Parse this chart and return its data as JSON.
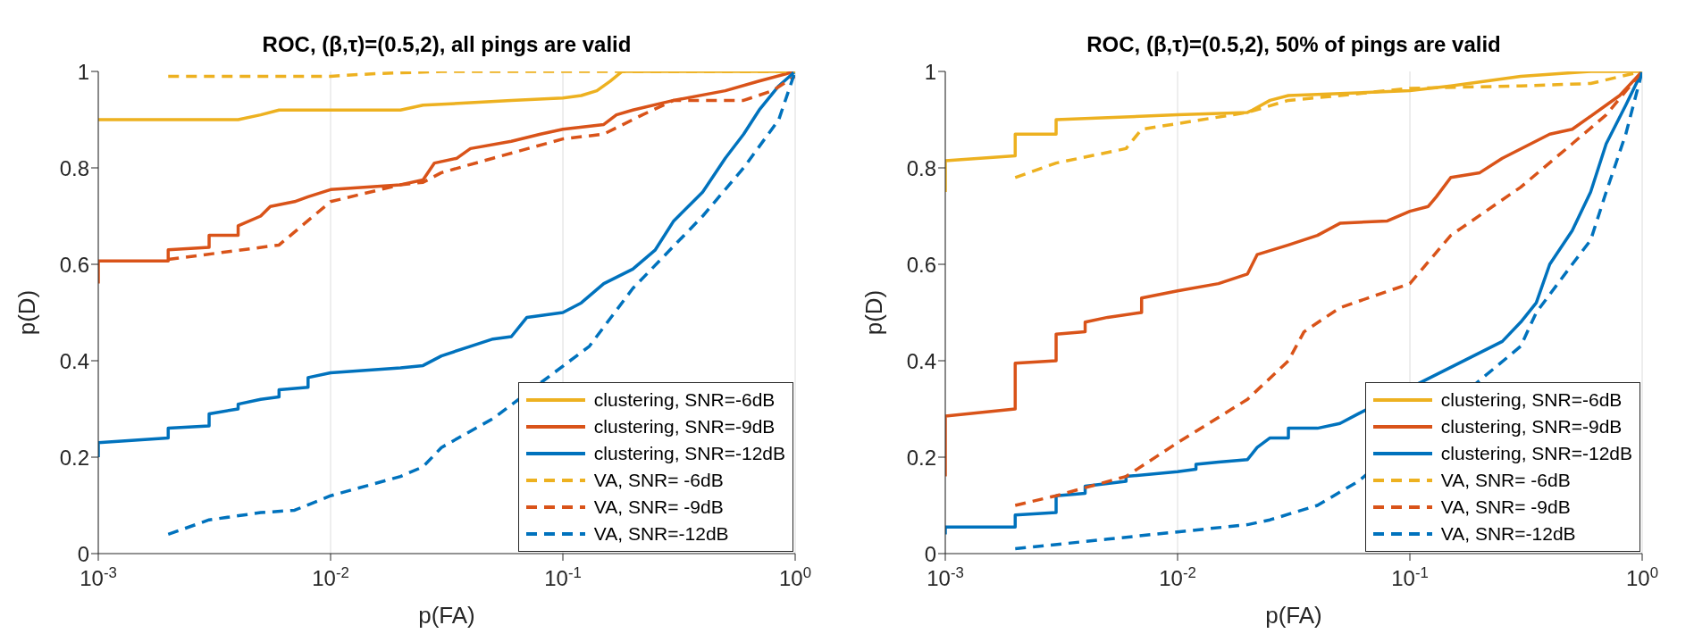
{
  "chart_data": [
    {
      "type": "line",
      "title": "ROC, (β,τ)=(0.5,2), all pings are valid",
      "xlabel": "p(FA)",
      "ylabel": "p(D)",
      "log": "x",
      "xlim": [
        0.001,
        1
      ],
      "xticks": [
        {
          "value": 0.001,
          "label": "10$^{-3}$"
        },
        {
          "value": 0.01,
          "label": "10$^{-2}$"
        },
        {
          "value": 0.1,
          "label": "10$^{-1}$"
        },
        {
          "value": 1,
          "label": "10$^{0}$"
        }
      ],
      "ylim": [
        0,
        1
      ],
      "yticks": [
        0,
        0.2,
        0.4,
        0.6,
        0.8,
        1
      ],
      "grid": true,
      "legend": "bottom right",
      "series": [
        {
          "name": "clustering, SNR=-6dB",
          "color": "#edb120",
          "line_style": "solid",
          "x": [
            0.001,
            0.004,
            0.005,
            0.006,
            0.02,
            0.025,
            0.04,
            0.06,
            0.1,
            0.12,
            0.14,
            0.16,
            0.18,
            1
          ],
          "values": [
            0.9,
            0.9,
            0.91,
            0.92,
            0.92,
            0.93,
            0.935,
            0.94,
            0.945,
            0.95,
            0.96,
            0.98,
            1,
            1
          ]
        },
        {
          "name": "clustering, SNR=-9dB",
          "color": "#d95319",
          "line_style": "solid",
          "x": [
            0.001,
            0.001,
            0.002,
            0.002,
            0.003,
            0.003,
            0.004,
            0.004,
            0.005,
            0.0055,
            0.007,
            0.008,
            0.01,
            0.02,
            0.025,
            0.028,
            0.035,
            0.04,
            0.06,
            0.08,
            0.1,
            0.15,
            0.17,
            0.2,
            0.3,
            0.5,
            0.7,
            1
          ],
          "values": [
            0.56,
            0.607,
            0.607,
            0.63,
            0.635,
            0.66,
            0.66,
            0.68,
            0.7,
            0.72,
            0.73,
            0.74,
            0.755,
            0.765,
            0.775,
            0.81,
            0.82,
            0.84,
            0.855,
            0.87,
            0.88,
            0.89,
            0.91,
            0.92,
            0.94,
            0.96,
            0.98,
            1
          ]
        },
        {
          "name": "clustering, SNR=-12dB",
          "color": "#0072bd",
          "line_style": "solid",
          "x": [
            0.001,
            0.001,
            0.002,
            0.002,
            0.003,
            0.003,
            0.004,
            0.004,
            0.005,
            0.006,
            0.006,
            0.008,
            0.008,
            0.01,
            0.02,
            0.025,
            0.03,
            0.04,
            0.05,
            0.06,
            0.07,
            0.1,
            0.12,
            0.15,
            0.2,
            0.25,
            0.3,
            0.4,
            0.5,
            0.6,
            0.7,
            0.85,
            1
          ],
          "values": [
            0.2,
            0.23,
            0.24,
            0.26,
            0.265,
            0.29,
            0.3,
            0.31,
            0.32,
            0.325,
            0.34,
            0.345,
            0.365,
            0.375,
            0.385,
            0.39,
            0.41,
            0.43,
            0.445,
            0.45,
            0.49,
            0.5,
            0.52,
            0.56,
            0.59,
            0.63,
            0.69,
            0.75,
            0.82,
            0.87,
            0.92,
            0.97,
            1
          ]
        },
        {
          "name": "VA, SNR= -6dB",
          "color": "#edb120",
          "line_style": "dashed",
          "x": [
            0.002,
            0.01,
            0.015,
            0.03,
            1
          ],
          "values": [
            0.99,
            0.99,
            0.995,
            1,
            1
          ]
        },
        {
          "name": "VA, SNR= -9dB",
          "color": "#d95319",
          "line_style": "dashed",
          "x": [
            0.002,
            0.006,
            0.01,
            0.02,
            0.025,
            0.03,
            0.05,
            0.1,
            0.15,
            0.22,
            0.3,
            0.6,
            0.8,
            1
          ],
          "values": [
            0.61,
            0.64,
            0.73,
            0.765,
            0.77,
            0.79,
            0.82,
            0.86,
            0.87,
            0.91,
            0.94,
            0.94,
            0.96,
            0.99
          ]
        },
        {
          "name": "VA, SNR=-12dB",
          "color": "#0072bd",
          "line_style": "dashed",
          "x": [
            0.002,
            0.003,
            0.005,
            0.007,
            0.01,
            0.02,
            0.025,
            0.03,
            0.05,
            0.13,
            0.2,
            0.4,
            0.6,
            0.85,
            1
          ],
          "values": [
            0.04,
            0.07,
            0.085,
            0.09,
            0.12,
            0.16,
            0.18,
            0.22,
            0.28,
            0.43,
            0.55,
            0.7,
            0.8,
            0.9,
            1
          ]
        }
      ]
    },
    {
      "type": "line",
      "title": "ROC, (β,τ)=(0.5,2), 50% of pings are valid",
      "xlabel": "p(FA)",
      "ylabel": "p(D)",
      "log": "x",
      "xlim": [
        0.001,
        1
      ],
      "xticks": [
        {
          "value": 0.001,
          "label": "10$^{-3}$"
        },
        {
          "value": 0.01,
          "label": "10$^{-2}$"
        },
        {
          "value": 0.1,
          "label": "10$^{-1}$"
        },
        {
          "value": 1,
          "label": "10$^{0}$"
        }
      ],
      "ylim": [
        0,
        1
      ],
      "yticks": [
        0,
        0.2,
        0.4,
        0.6,
        0.8,
        1
      ],
      "grid": true,
      "legend": "bottom right",
      "series": [
        {
          "name": "clustering, SNR=-6dB",
          "color": "#edb120",
          "line_style": "solid",
          "x": [
            0.001,
            0.001,
            0.002,
            0.002,
            0.003,
            0.003,
            0.01,
            0.02,
            0.021,
            0.025,
            0.03,
            0.1,
            0.15,
            0.3,
            0.6,
            1
          ],
          "values": [
            0.75,
            0.815,
            0.825,
            0.87,
            0.87,
            0.9,
            0.91,
            0.915,
            0.92,
            0.94,
            0.95,
            0.96,
            0.97,
            0.99,
            1,
            1
          ]
        },
        {
          "name": "clustering, SNR=-9dB",
          "color": "#d95319",
          "line_style": "solid",
          "x": [
            0.001,
            0.001,
            0.002,
            0.002,
            0.003,
            0.003,
            0.004,
            0.004,
            0.005,
            0.007,
            0.007,
            0.01,
            0.015,
            0.02,
            0.022,
            0.03,
            0.04,
            0.05,
            0.08,
            0.1,
            0.12,
            0.13,
            0.15,
            0.2,
            0.25,
            0.4,
            0.5,
            0.7,
            0.8,
            1
          ],
          "values": [
            0.16,
            0.285,
            0.3,
            0.395,
            0.4,
            0.455,
            0.46,
            0.48,
            0.49,
            0.5,
            0.53,
            0.545,
            0.56,
            0.58,
            0.62,
            0.64,
            0.66,
            0.685,
            0.69,
            0.71,
            0.72,
            0.74,
            0.78,
            0.79,
            0.82,
            0.87,
            0.88,
            0.93,
            0.95,
            1
          ]
        },
        {
          "name": "clustering, SNR=-12dB",
          "color": "#0072bd",
          "line_style": "solid",
          "x": [
            0.001,
            0.001,
            0.002,
            0.002,
            0.003,
            0.003,
            0.004,
            0.004,
            0.006,
            0.006,
            0.01,
            0.012,
            0.012,
            0.015,
            0.02,
            0.022,
            0.025,
            0.03,
            0.03,
            0.04,
            0.05,
            0.06,
            0.25,
            0.3,
            0.35,
            0.4,
            0.5,
            0.6,
            0.7,
            0.85,
            1
          ],
          "values": [
            0.04,
            0.055,
            0.055,
            0.08,
            0.085,
            0.12,
            0.125,
            0.14,
            0.15,
            0.16,
            0.17,
            0.175,
            0.185,
            0.19,
            0.195,
            0.22,
            0.24,
            0.24,
            0.26,
            0.26,
            0.27,
            0.29,
            0.44,
            0.48,
            0.52,
            0.6,
            0.67,
            0.75,
            0.85,
            0.93,
            1
          ]
        },
        {
          "name": "VA, SNR= -6dB",
          "color": "#edb120",
          "line_style": "dashed",
          "x": [
            0.002,
            0.003,
            0.006,
            0.007,
            0.02,
            0.03,
            0.05,
            0.1,
            0.3,
            0.6,
            1
          ],
          "values": [
            0.78,
            0.81,
            0.84,
            0.88,
            0.915,
            0.94,
            0.95,
            0.965,
            0.97,
            0.975,
            1
          ]
        },
        {
          "name": "VA, SNR= -9dB",
          "color": "#d95319",
          "line_style": "dashed",
          "x": [
            0.002,
            0.003,
            0.006,
            0.01,
            0.02,
            0.03,
            0.035,
            0.05,
            0.1,
            0.15,
            0.3,
            0.5,
            0.7,
            1
          ],
          "values": [
            0.1,
            0.12,
            0.16,
            0.23,
            0.32,
            0.4,
            0.46,
            0.51,
            0.56,
            0.66,
            0.76,
            0.85,
            0.91,
            1
          ]
        },
        {
          "name": "VA, SNR=-12dB",
          "color": "#0072bd",
          "line_style": "dashed",
          "x": [
            0.002,
            0.005,
            0.01,
            0.02,
            0.025,
            0.04,
            0.06,
            0.3,
            0.35,
            0.5,
            0.6,
            0.7,
            0.85,
            1
          ],
          "values": [
            0.01,
            0.03,
            0.045,
            0.06,
            0.07,
            0.1,
            0.15,
            0.43,
            0.5,
            0.6,
            0.65,
            0.75,
            0.87,
            1
          ]
        }
      ]
    }
  ]
}
